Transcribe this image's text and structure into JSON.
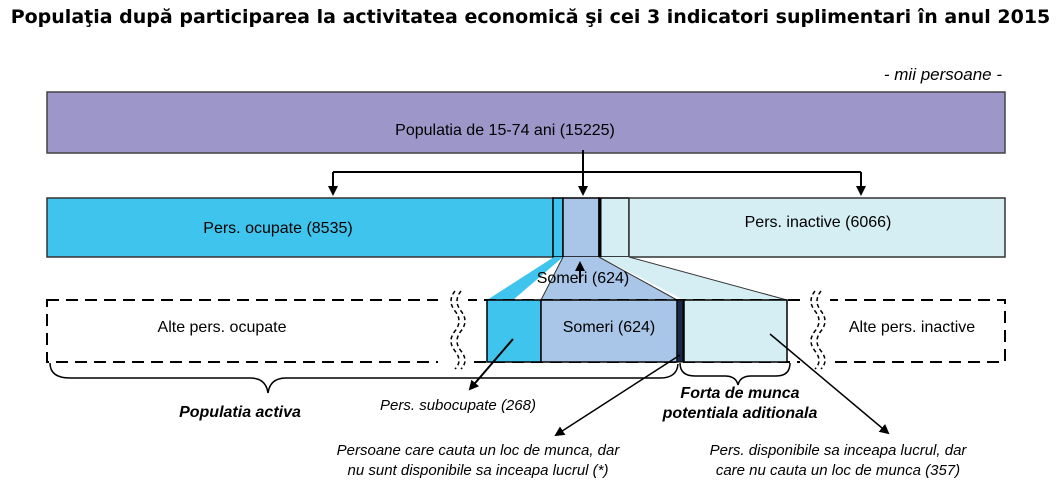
{
  "title": "Populaţia după participarea la activitatea economică şi cei 3 indicatori suplimentari în anul 2015",
  "unit": "- mii persoane -",
  "boxes": {
    "population": "Populatia de 15-74 ani (15225)",
    "employed": "Pers. ocupate (8535)",
    "inactive": "Pers. inactive (6066)",
    "unemployed_top": "Someri (624)",
    "unemployed_detail": "Someri (624)",
    "other_employed": "Alte pers. ocupate",
    "other_inactive": "Alte pers. inactive"
  },
  "labels": {
    "active_population": "Populatia activa",
    "underemployed": "Pers. subocupate (268)",
    "potential_labour_force_line1": "Forta de munca",
    "potential_labour_force_line2": "potentiala aditionala",
    "seeking_not_available_line1": "Persoane care cauta un loc de munca, dar",
    "seeking_not_available_line2": "nu sunt disponibile  sa inceapa lucrul (*)",
    "available_not_seeking_line1": "Pers. disponibile sa inceapa lucrul, dar",
    "available_not_seeking_line2": "care nu cauta un loc de munca (357)"
  },
  "colors": {
    "population": "#9d96c8",
    "employed": "#3ec4ed",
    "unemployed": "#a9c6e8",
    "inactive": "#d4eef3"
  }
}
